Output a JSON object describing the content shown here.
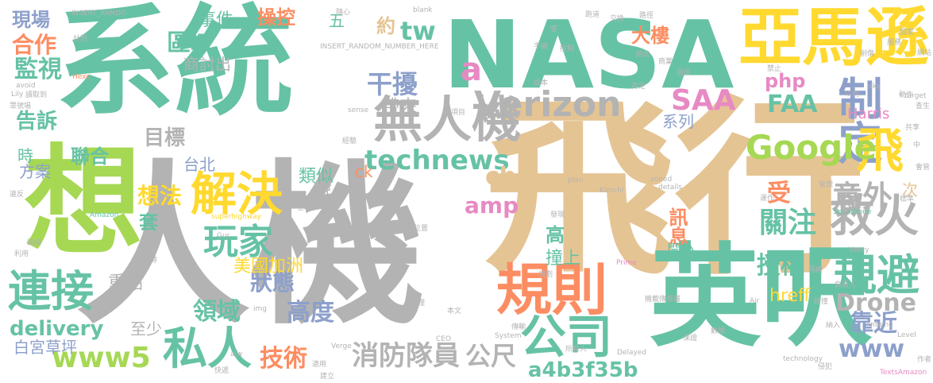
{
  "palette": {
    "teal": "#66c2a5",
    "gray": "#b3b3b3",
    "tan": "#e5c494",
    "lime": "#a6d854",
    "salmon": "#fc8d62",
    "blue": "#8da0cb",
    "pink": "#e78ac3",
    "yellow": "#ffd92f"
  },
  "words": [
    {
      "text": "系統",
      "color": "teal",
      "weight": 10
    },
    {
      "text": "人機",
      "color": "gray",
      "weight": 10
    },
    {
      "text": "飛行",
      "color": "tan",
      "weight": 10
    },
    {
      "text": "NASA",
      "color": "teal",
      "weight": 9
    },
    {
      "text": "想",
      "color": "lime",
      "weight": 9
    },
    {
      "text": "英呎",
      "color": "teal",
      "weight": 9
    },
    {
      "text": "亞馬遜",
      "color": "yellow",
      "weight": 7
    },
    {
      "text": "無人機",
      "color": "gray",
      "weight": 6
    },
    {
      "text": "制定",
      "color": "blue",
      "weight": 6
    },
    {
      "text": "解決",
      "color": "yellow",
      "weight": 6
    },
    {
      "text": "規則",
      "color": "salmon",
      "weight": 6
    },
    {
      "text": "公司",
      "color": "teal",
      "weight": 5
    },
    {
      "text": "救火",
      "color": "gray",
      "weight": 5
    },
    {
      "text": "規避",
      "color": "teal",
      "weight": 5
    },
    {
      "text": "連接",
      "color": "teal",
      "weight": 5
    },
    {
      "text": "私人",
      "color": "teal",
      "weight": 5
    },
    {
      "text": "玩家",
      "color": "teal",
      "weight": 5
    },
    {
      "text": "飛",
      "color": "yellow",
      "weight": 5
    },
    {
      "text": "Verizon",
      "color": "gray",
      "weight": 4
    },
    {
      "text": "technews",
      "color": "teal",
      "weight": 4
    },
    {
      "text": "Google",
      "color": "lime",
      "weight": 4
    },
    {
      "text": "消防隊員",
      "color": "gray",
      "weight": 4
    },
    {
      "text": "公尺",
      "color": "gray",
      "weight": 4
    },
    {
      "text": "關注",
      "color": "teal",
      "weight": 4
    },
    {
      "text": "意外",
      "color": "gray",
      "weight": 4
    },
    {
      "text": "www5",
      "color": "lime",
      "weight": 4
    },
    {
      "text": "delivery",
      "color": "teal",
      "weight": 3
    },
    {
      "text": "Drone",
      "color": "gray",
      "weight": 3
    },
    {
      "text": "www",
      "color": "blue",
      "weight": 3
    },
    {
      "text": "靠近",
      "color": "blue",
      "weight": 3
    },
    {
      "text": "授權",
      "color": "teal",
      "weight": 3
    },
    {
      "text": "高度",
      "color": "blue",
      "weight": 3
    },
    {
      "text": "狀態",
      "color": "blue",
      "weight": 3
    },
    {
      "text": "領域",
      "color": "teal",
      "weight": 3
    },
    {
      "text": "技術",
      "color": "salmon",
      "weight": 3
    },
    {
      "text": "SAA",
      "color": "pink",
      "weight": 3
    },
    {
      "text": "FAA",
      "color": "teal",
      "weight": 3
    },
    {
      "text": "干擾",
      "color": "blue",
      "weight": 3
    },
    {
      "text": "amp",
      "color": "pink",
      "weight": 3
    },
    {
      "text": "cb",
      "color": "tan",
      "weight": 3
    },
    {
      "text": "tw",
      "color": "teal",
      "weight": 3
    },
    {
      "text": "php",
      "color": "pink",
      "weight": 2
    },
    {
      "text": "a",
      "color": "pink",
      "weight": 3
    },
    {
      "text": "區域",
      "color": "teal",
      "weight": 3
    },
    {
      "text": "監視",
      "color": "teal",
      "weight": 3
    },
    {
      "text": "合作",
      "color": "salmon",
      "weight": 3
    },
    {
      "text": "告訴",
      "color": "teal",
      "weight": 2
    },
    {
      "text": "目標",
      "color": "gray",
      "weight": 2
    },
    {
      "text": "想法",
      "color": "yellow",
      "weight": 2
    },
    {
      "text": "套",
      "color": "teal",
      "weight": 2
    },
    {
      "text": "重點",
      "color": "gray",
      "weight": 2
    },
    {
      "text": "美國加洲",
      "color": "yellow",
      "weight": 2
    },
    {
      "text": "白宮草坪",
      "color": "blue",
      "weight": 2
    },
    {
      "text": "a4b3f35b",
      "color": "teal",
      "weight": 2
    },
    {
      "text": "受",
      "color": "salmon",
      "weight": 2
    },
    {
      "text": "訊息",
      "color": "salmon",
      "weight": 2
    },
    {
      "text": "大樓",
      "color": "salmon",
      "weight": 2
    },
    {
      "text": "撞上",
      "color": "teal",
      "weight": 2
    },
    {
      "text": "高",
      "color": "teal",
      "weight": 2
    },
    {
      "text": "闖入",
      "color": "teal",
      "weight": 2
    },
    {
      "text": "hreff",
      "color": "yellow",
      "weight": 2
    },
    {
      "text": "Harris",
      "color": "pink",
      "weight": 2
    },
    {
      "text": "帶來",
      "color": "gray",
      "weight": 2
    },
    {
      "text": "約",
      "color": "tan",
      "weight": 2
    },
    {
      "text": "事件",
      "color": "teal",
      "weight": 2
    },
    {
      "text": "操控",
      "color": "salmon",
      "weight": 2
    },
    {
      "text": "五",
      "color": "teal",
      "weight": 2
    },
    {
      "text": "系列",
      "color": "blue",
      "weight": 2
    },
    {
      "text": "聯合",
      "color": "teal",
      "weight": 2
    },
    {
      "text": "類似",
      "color": "teal",
      "weight": 2
    },
    {
      "text": "說",
      "color": "gray",
      "weight": 2
    },
    {
      "text": "台北",
      "color": "blue",
      "weight": 2
    },
    {
      "text": "至少",
      "color": "gray",
      "weight": 2
    },
    {
      "text": "商討出",
      "color": "gray",
      "weight": 2
    },
    {
      "text": "方案",
      "color": "blue",
      "weight": 2
    },
    {
      "text": "時",
      "color": "teal",
      "weight": 2
    },
    {
      "text": "ck",
      "color": "salmon",
      "weight": 2
    },
    {
      "text": "n",
      "color": "teal",
      "weight": 2
    },
    {
      "text": "次",
      "color": "tan",
      "weight": 2
    },
    {
      "text": "現場",
      "color": "blue",
      "weight": 2
    },
    {
      "text": "INSERT_RANDOM_NUMBER_HERE",
      "color": "gray",
      "weight": 1
    },
    {
      "text": "superhighway",
      "color": "yellow",
      "weight": 1
    },
    {
      "text": "Amazon",
      "color": "teal",
      "weight": 1
    },
    {
      "text": "Kimchi",
      "color": "gray",
      "weight": 1
    },
    {
      "text": "Squadrone",
      "color": "teal",
      "weight": 1
    },
    {
      "text": "Delayed",
      "color": "gray",
      "weight": 1
    },
    {
      "text": "technology",
      "color": "gray",
      "weight": 1
    },
    {
      "text": "TextsAmazon",
      "color": "pink",
      "weight": 1
    },
    {
      "text": "Antoine",
      "color": "gray",
      "weight": 1
    },
    {
      "text": "Level",
      "color": "gray",
      "weight": 1
    },
    {
      "text": "Verge",
      "color": "gray",
      "weight": 1
    },
    {
      "text": "CEO",
      "color": "gray",
      "weight": 1
    },
    {
      "text": "System",
      "color": "gray",
      "weight": 1
    },
    {
      "text": "Prime",
      "color": "pink",
      "weight": 1
    },
    {
      "text": "plan",
      "color": "gray",
      "weight": 1
    },
    {
      "text": "details",
      "color": "gray",
      "weight": 1
    },
    {
      "text": "zoned",
      "color": "gray",
      "weight": 1
    },
    {
      "text": "sense",
      "color": "gray",
      "weight": 1
    },
    {
      "text": "Hexo",
      "color": "salmon",
      "weight": 1
    },
    {
      "text": "avoid",
      "color": "gray",
      "weight": 1
    },
    {
      "text": "Lily",
      "color": "gray",
      "weight": 1
    },
    {
      "text": "target",
      "color": "gray",
      "weight": 1
    },
    {
      "text": "Air",
      "color": "gray",
      "weight": 1
    },
    {
      "text": "img",
      "color": "gray",
      "weight": 1
    },
    {
      "text": "Gur",
      "color": "gray",
      "weight": 1
    },
    {
      "text": "aiw",
      "color": "gray",
      "weight": 1
    },
    {
      "text": "blank",
      "color": "gray",
      "weight": 1
    },
    {
      "text": "Venty",
      "color": "gray",
      "weight": 1
    },
    {
      "text": "sky",
      "color": "gray",
      "weight": 1
    },
    {
      "text": "INSERT_RANDO",
      "color": "gray",
      "weight": 1
    },
    {
      "text": "跑道",
      "color": "gray",
      "weight": 1
    },
    {
      "text": "路徑",
      "color": "gray",
      "weight": 1
    },
    {
      "text": "交換",
      "color": "gray",
      "weight": 1
    },
    {
      "text": "商業",
      "color": "gray",
      "weight": 1
    },
    {
      "text": "手機",
      "color": "gray",
      "weight": 1
    },
    {
      "text": "控制",
      "color": "gray",
      "weight": 1
    },
    {
      "text": "成本",
      "color": "gray",
      "weight": 1
    },
    {
      "text": "國家",
      "color": "gray",
      "weight": 1
    },
    {
      "text": "服務",
      "color": "gray",
      "weight": 1
    },
    {
      "text": "創傷",
      "color": "gray",
      "weight": 1
    },
    {
      "text": "肯定",
      "color": "gray",
      "weight": 1
    },
    {
      "text": "動作",
      "color": "gray",
      "weight": 1
    },
    {
      "text": "以內",
      "color": "gray",
      "weight": 1
    },
    {
      "text": "查生",
      "color": "gray",
      "weight": 1
    },
    {
      "text": "中",
      "color": "gray",
      "weight": 1
    },
    {
      "text": "共享",
      "color": "gray",
      "weight": 1
    },
    {
      "text": "標準",
      "color": "gray",
      "weight": 1
    },
    {
      "text": "負責人",
      "color": "gray",
      "weight": 1
    },
    {
      "text": "飛機",
      "color": "gray",
      "weight": 1
    },
    {
      "text": "碰撞",
      "color": "gray",
      "weight": 1
    },
    {
      "text": "納入",
      "color": "gray",
      "weight": 1
    },
    {
      "text": "侵犯",
      "color": "gray",
      "weight": 1
    },
    {
      "text": "保證",
      "color": "gray",
      "weight": 1
    },
    {
      "text": "數據",
      "color": "gray",
      "weight": 1
    },
    {
      "text": "機載傳感器",
      "color": "gray",
      "weight": 1
    },
    {
      "text": "所有人",
      "color": "gray",
      "weight": 1
    },
    {
      "text": "傳輸",
      "color": "gray",
      "weight": 1
    },
    {
      "text": "本文",
      "color": "gray",
      "weight": 1
    },
    {
      "text": "處理",
      "color": "gray",
      "weight": 1
    },
    {
      "text": "規劃",
      "color": "gray",
      "weight": 1
    },
    {
      "text": "發現",
      "color": "gray",
      "weight": 1
    },
    {
      "text": "位置",
      "color": "gray",
      "weight": 1
    },
    {
      "text": "網路",
      "color": "gray",
      "weight": 1
    },
    {
      "text": "空域",
      "color": "gray",
      "weight": 1
    },
    {
      "text": "背後",
      "color": "gray",
      "weight": 1
    },
    {
      "text": "報導",
      "color": "gray",
      "weight": 1
    },
    {
      "text": "學校",
      "color": "gray",
      "weight": 1
    },
    {
      "text": "建立",
      "color": "gray",
      "weight": 1
    },
    {
      "text": "快遞",
      "color": "gray",
      "weight": 1
    },
    {
      "text": "適用",
      "color": "gray",
      "weight": 1
    },
    {
      "text": "路線",
      "color": "gray",
      "weight": 1
    },
    {
      "text": "利用",
      "color": "gray",
      "weight": 1
    },
    {
      "text": "違反",
      "color": "gray",
      "weight": 1
    },
    {
      "text": "眾號場",
      "color": "gray",
      "weight": 1
    },
    {
      "text": "讀取到",
      "color": "gray",
      "weight": 1
    },
    {
      "text": "計劃",
      "color": "gray",
      "weight": 1
    },
    {
      "text": "項目",
      "color": "gray",
      "weight": 1
    },
    {
      "text": "經驗",
      "color": "gray",
      "weight": 1
    },
    {
      "text": "隨心",
      "color": "gray",
      "weight": 1
    },
    {
      "text": "客",
      "color": "gray",
      "weight": 1
    },
    {
      "text": "測試",
      "color": "gray",
      "weight": 1
    },
    {
      "text": "居民",
      "color": "gray",
      "weight": 1
    },
    {
      "text": "禁止",
      "color": "gray",
      "weight": 1
    },
    {
      "text": "網站",
      "color": "gray",
      "weight": 1
    },
    {
      "text": "會管",
      "color": "gray",
      "weight": 1
    },
    {
      "text": "作者",
      "color": "gray",
      "weight": 1
    },
    {
      "text": "管理",
      "color": "gray",
      "weight": 1
    },
    {
      "text": "運作",
      "color": "gray",
      "weight": 1
    }
  ]
}
